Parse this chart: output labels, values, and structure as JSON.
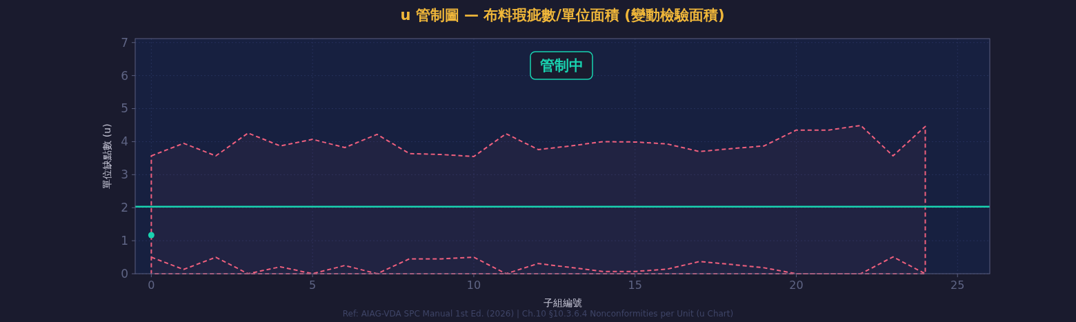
{
  "chart_data": {
    "type": "line",
    "title": "u 管制圖 — 布料瑕疵數/單位面積 (變動檢驗面積)",
    "xlabel": "子組編號",
    "ylabel": "單位缺點數 (u)",
    "xlim": [
      -0.5,
      26
    ],
    "xticks": [
      0,
      5,
      10,
      15,
      20,
      25
    ],
    "ylim": [
      0,
      7.12
    ],
    "yticks": [
      0,
      1,
      2,
      3,
      4,
      5,
      6,
      7
    ],
    "grid": true,
    "series": [
      {
        "type": "area",
        "color": "#f0607e",
        "line_style": "dashed",
        "x": [
          0,
          1,
          2,
          3,
          4,
          5,
          6,
          7,
          8,
          9,
          10,
          11,
          12,
          13,
          14,
          15,
          16,
          17,
          18,
          19,
          20,
          21,
          22,
          23,
          24
        ],
        "values": [
          3.57,
          3.95,
          3.57,
          4.26,
          3.87,
          4.07,
          3.82,
          4.22,
          3.64,
          3.61,
          3.55,
          4.24,
          3.76,
          3.87,
          4.0,
          3.99,
          3.93,
          3.7,
          3.79,
          3.87,
          4.35,
          4.35,
          4.49,
          3.57,
          4.46
        ]
      },
      {
        "color": "#f0607e",
        "line_style": "dashed",
        "x": [
          0,
          1,
          2,
          3,
          4,
          5,
          6,
          7,
          8,
          9,
          10,
          11,
          12,
          13,
          14,
          15,
          16,
          17,
          18,
          19,
          20,
          21,
          22,
          23,
          24
        ],
        "values": [
          0.5,
          0.13,
          0.5,
          0,
          0.21,
          0,
          0.25,
          0,
          0.45,
          0.45,
          0.5,
          0,
          0.31,
          0.19,
          0.07,
          0.07,
          0.14,
          0.37,
          0.28,
          0.18,
          0,
          0,
          0,
          0.51,
          0
        ]
      },
      {
        "type": "scatter",
        "color": "#19d3b0",
        "marker": "circle",
        "x": [
          0
        ],
        "values": [
          1.17
        ]
      }
    ],
    "ref_lines": [
      {
        "axis": "y",
        "value": 2.03,
        "color": "#19d3b0",
        "line_style": "solid"
      }
    ],
    "annotations": [
      "管制中",
      "Ref: AIAG-VDA SPC Manual 1st Ed. (2026) | Ch.10 §10.3.6.4 Nonconformities per Unit (u Chart)"
    ]
  }
}
